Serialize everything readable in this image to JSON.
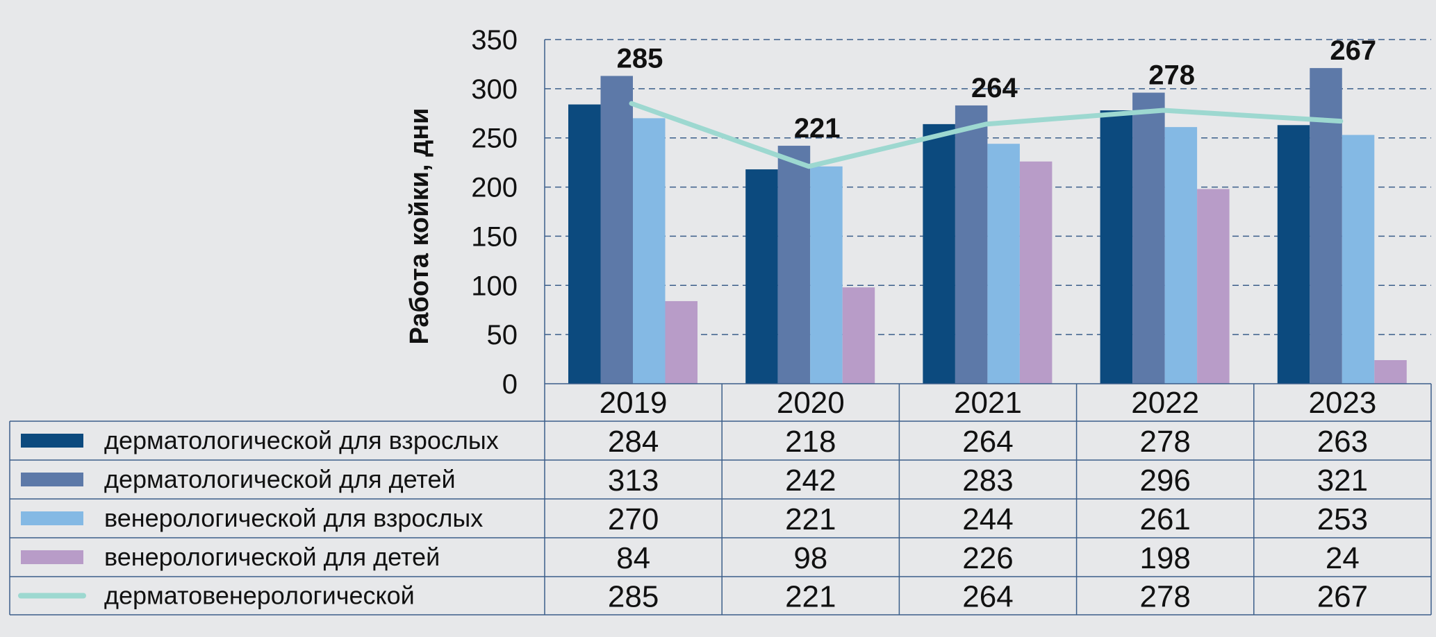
{
  "chart_data": {
    "type": "bar",
    "ylabel": "Работа койки, дни",
    "ylim": [
      0,
      350
    ],
    "yticks": [
      "0",
      "50",
      "100",
      "150",
      "200",
      "250",
      "300",
      "350"
    ],
    "categories": [
      "2019",
      "2020",
      "2021",
      "2022",
      "2023"
    ],
    "series": [
      {
        "name": "дерматологической для взрослых",
        "kind": "bar",
        "color": "#0c4a7e",
        "values": [
          284,
          218,
          264,
          278,
          263
        ],
        "labels": [
          "284",
          "218",
          "264",
          "278",
          "263"
        ]
      },
      {
        "name": "дерматологической для детей",
        "kind": "bar",
        "color": "#5d79a8",
        "values": [
          313,
          242,
          283,
          296,
          321
        ],
        "labels": [
          "313",
          "242",
          "283",
          "296",
          "321"
        ]
      },
      {
        "name": "венерологической для взрослых",
        "kind": "bar",
        "color": "#84b9e4",
        "values": [
          270,
          221,
          244,
          261,
          253
        ],
        "labels": [
          "270",
          "221",
          "244",
          "261",
          "253"
        ]
      },
      {
        "name": "венерологической для детей",
        "kind": "bar",
        "color": "#b89cc8",
        "values": [
          84,
          98,
          226,
          198,
          24
        ],
        "labels": [
          "84",
          "98",
          "226",
          "198",
          "24"
        ]
      },
      {
        "name": "дерматовенерологической",
        "kind": "line",
        "color": "#9dd8d0",
        "values": [
          285,
          221,
          264,
          278,
          267
        ],
        "labels": [
          "285",
          "221",
          "264",
          "278",
          "267"
        ]
      }
    ],
    "grid": "dashed horizontal",
    "legend": "data table below chart"
  }
}
